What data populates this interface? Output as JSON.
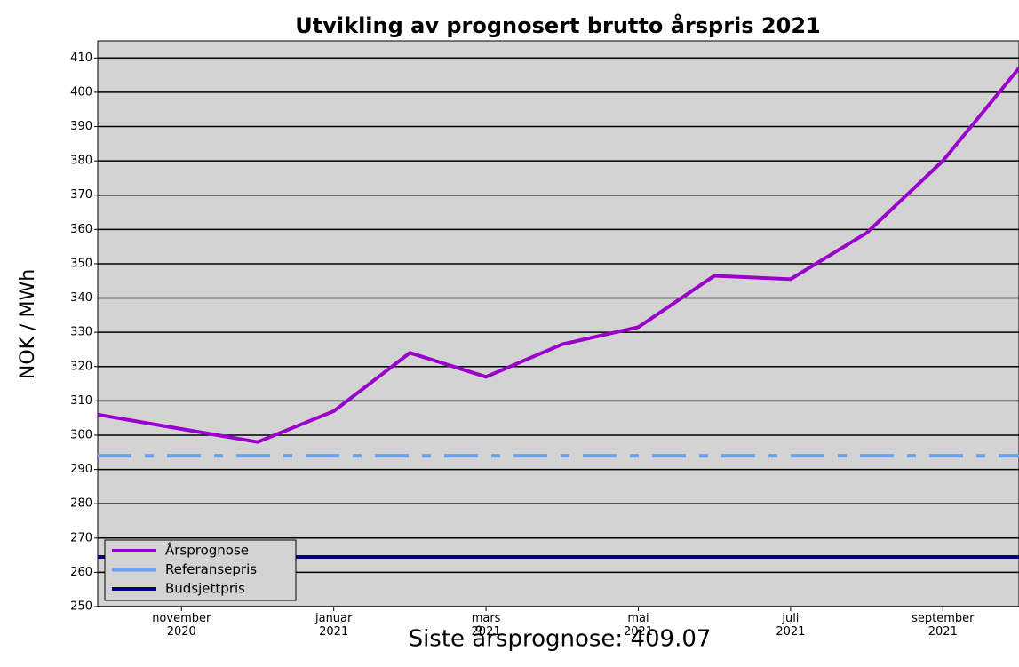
{
  "chart_data": {
    "type": "line",
    "title": "Utvikling av prognosert brutto årspris 2021",
    "ylabel": "NOK / MWh",
    "annotation": "Siste årsprognose: 409.07",
    "x": [
      -1.1,
      1,
      2,
      3,
      4,
      5,
      6,
      7,
      8,
      9,
      10,
      11
    ],
    "xlim": [
      -1.1,
      11
    ],
    "xticks": [
      {
        "value": 0,
        "label": "november 2020"
      },
      {
        "value": 2,
        "label": "januar 2021"
      },
      {
        "value": 4,
        "label": "mars 2021"
      },
      {
        "value": 6,
        "label": "mai 2021"
      },
      {
        "value": 8,
        "label": "juli 2021"
      },
      {
        "value": 10,
        "label": "september 2021"
      }
    ],
    "ylim": [
      250,
      415
    ],
    "yticks": [
      250,
      260,
      270,
      280,
      290,
      300,
      310,
      320,
      330,
      340,
      350,
      360,
      370,
      380,
      390,
      400,
      410
    ],
    "grid": true,
    "legend": "lower left",
    "series": [
      {
        "name": "Årsprognose",
        "color": "#9900cc",
        "values": [
          306,
          298,
          307,
          324,
          317,
          326.5,
          331.5,
          346.5,
          345.5,
          359,
          380,
          407
        ]
      },
      {
        "name": "Referansepris",
        "color": "#6ca0f0",
        "dash": true,
        "value": 294
      },
      {
        "name": "Budsjettpris",
        "color": "#000080",
        "value": 264.5
      }
    ]
  }
}
